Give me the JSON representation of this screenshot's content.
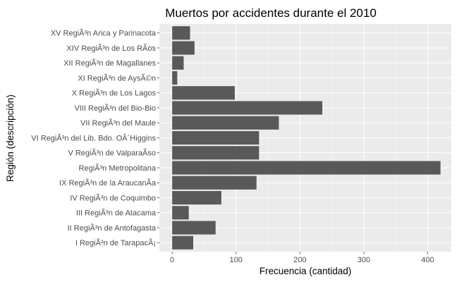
{
  "chart_data": {
    "type": "bar",
    "orientation": "horizontal",
    "title": "Muertos por accidentes durante el 2010",
    "xlabel": "Frecuencia (cantidad)",
    "ylabel": "Región (descripción)",
    "xlim": [
      -20,
      437
    ],
    "xticks": [
      0,
      100,
      200,
      300,
      400
    ],
    "grid": true,
    "colors": {
      "panel": "#ebebeb",
      "grid_major": "#ffffff",
      "grid_minor": "#f5f5f5",
      "bar": "#595959",
      "tick_text": "#4d4d4d"
    },
    "categories": [
      "XV RegiÃ³n Arica y Parinacota",
      "XIV RegiÃ³n de Los RÃ­os",
      "XII RegiÃ³n de Magallanes",
      "XI RegiÃ³n de AysÃ©n",
      "X RegiÃ³n de Los Lagos",
      "VIII RegiÃ³n del Bio-Bio",
      "VII RegiÃ³n del Maule",
      "VI RegiÃ³n del Lib. Bdo. OÂ´Higgins",
      "V RegiÃ³n de ValparaÃ­so",
      "RegiÃ³n Metropolitana",
      "IX RegiÃ³n de la AraucanÃ­a",
      "IV RegiÃ³n de Coquimbo",
      "III RegiÃ³n de Atacama",
      "II RegiÃ³n de Antofagasta",
      "I RegiÃ³n de TarapacÃ¡"
    ],
    "values": [
      28,
      35,
      18,
      8,
      98,
      235,
      167,
      136,
      136,
      420,
      132,
      77,
      26,
      68,
      33
    ]
  }
}
